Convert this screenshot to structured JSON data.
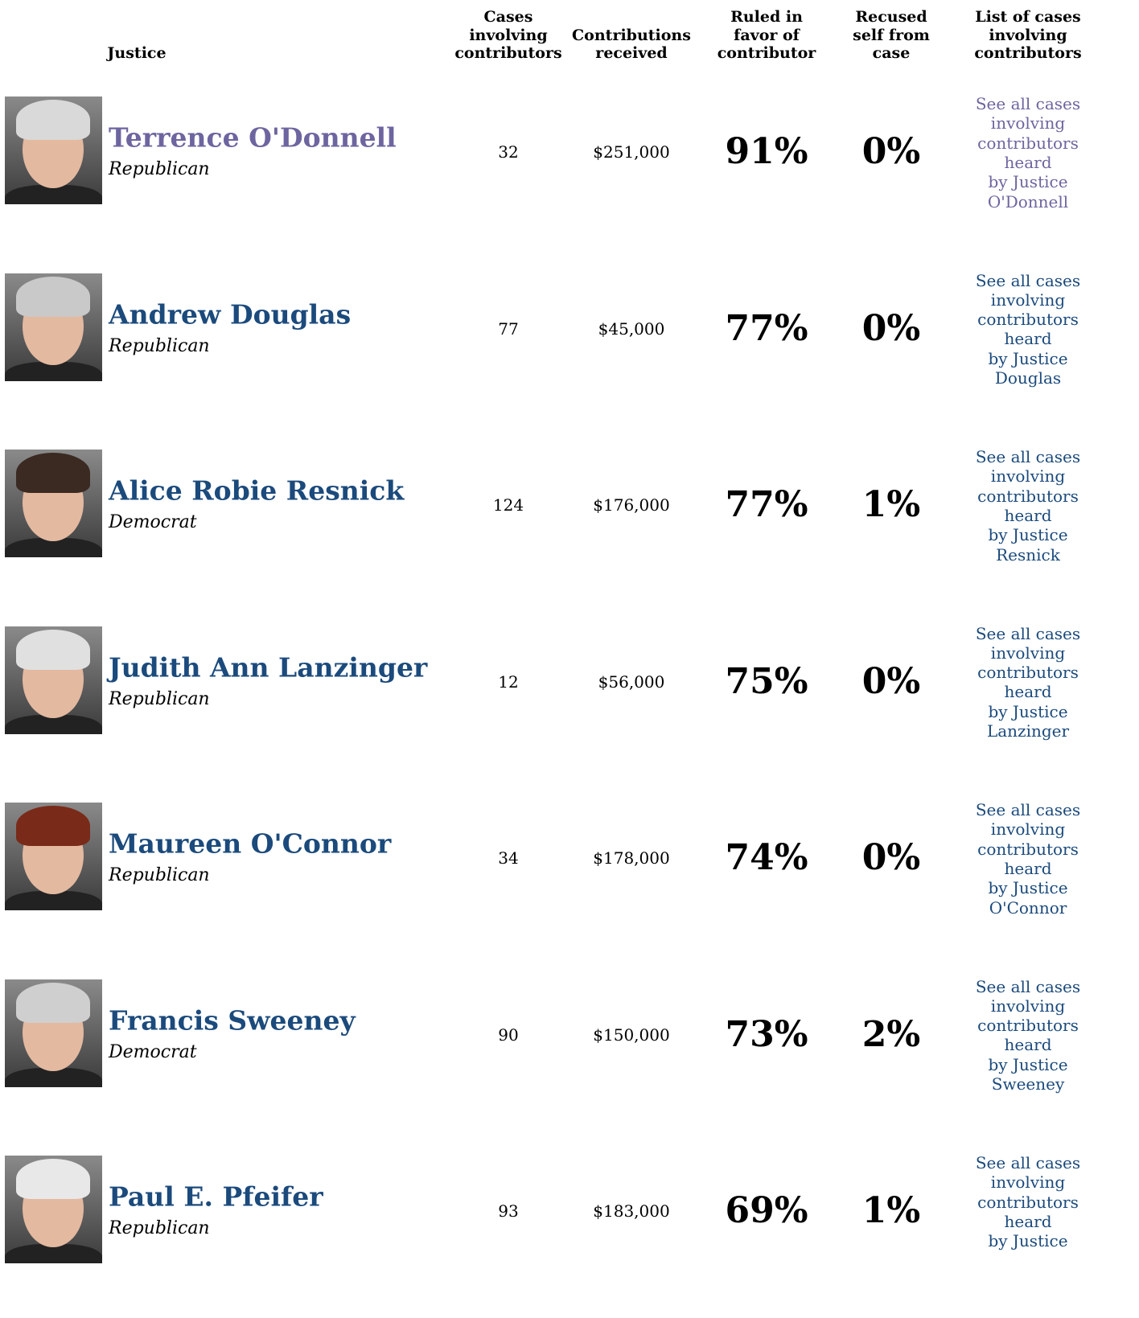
{
  "header": {
    "columns": [
      {
        "lines": [
          "Justice"
        ]
      },
      {
        "lines": [
          "Cases",
          "involving",
          "contributors"
        ]
      },
      {
        "lines": [
          "Contributions",
          "received"
        ]
      },
      {
        "lines": [
          "Ruled in",
          "favor of",
          "contributor"
        ]
      },
      {
        "lines": [
          "Recused",
          "self from",
          "case"
        ]
      },
      {
        "lines": [
          "List of cases",
          "involving",
          "contributors"
        ]
      }
    ]
  },
  "table": {
    "rows": [
      {
        "name": "Terrence O'Donnell",
        "party": "Republican",
        "cases": "32",
        "contributions": "$251,000",
        "ruled": "91%",
        "recused": "0%",
        "color": "#6d659f",
        "link": [
          "See all cases",
          "involving",
          "contributors",
          "heard",
          "by Justice",
          "O'Donnell"
        ]
      },
      {
        "name": "Andrew Douglas",
        "party": "Republican",
        "cases": "77",
        "contributions": "$45,000",
        "ruled": "77%",
        "recused": "0%",
        "color": "#1b4a7c",
        "link": [
          "See all cases",
          "involving",
          "contributors",
          "heard",
          "by Justice",
          "Douglas"
        ]
      },
      {
        "name": "Alice Robie Resnick",
        "party": "Democrat",
        "cases": "124",
        "contributions": "$176,000",
        "ruled": "77%",
        "recused": "1%",
        "color": "#1b4a7c",
        "link": [
          "See all cases",
          "involving",
          "contributors",
          "heard",
          "by Justice",
          "Resnick"
        ]
      },
      {
        "name": "Judith Ann Lanzinger",
        "party": "Republican",
        "cases": "12",
        "contributions": "$56,000",
        "ruled": "75%",
        "recused": "0%",
        "color": "#1b4a7c",
        "link": [
          "See all cases",
          "involving",
          "contributors",
          "heard",
          "by Justice",
          "Lanzinger"
        ]
      },
      {
        "name": "Maureen O'Connor",
        "party": "Republican",
        "cases": "34",
        "contributions": "$178,000",
        "ruled": "74%",
        "recused": "0%",
        "color": "#1b4a7c",
        "link": [
          "See all cases",
          "involving",
          "contributors",
          "heard",
          "by Justice",
          "O'Connor"
        ]
      },
      {
        "name": "Francis Sweeney",
        "party": "Democrat",
        "cases": "90",
        "contributions": "$150,000",
        "ruled": "73%",
        "recused": "2%",
        "color": "#1b4a7c",
        "link": [
          "See all cases",
          "involving",
          "contributors",
          "heard",
          "by Justice",
          "Sweeney"
        ]
      },
      {
        "name": "Paul E. Pfeifer",
        "party": "Republican",
        "cases": "93",
        "contributions": "$183,000",
        "ruled": "69%",
        "recused": "1%",
        "color": "#1b4a7c",
        "link": [
          "See all cases",
          "involving",
          "contributors",
          "heard",
          "by Justice"
        ]
      }
    ]
  }
}
